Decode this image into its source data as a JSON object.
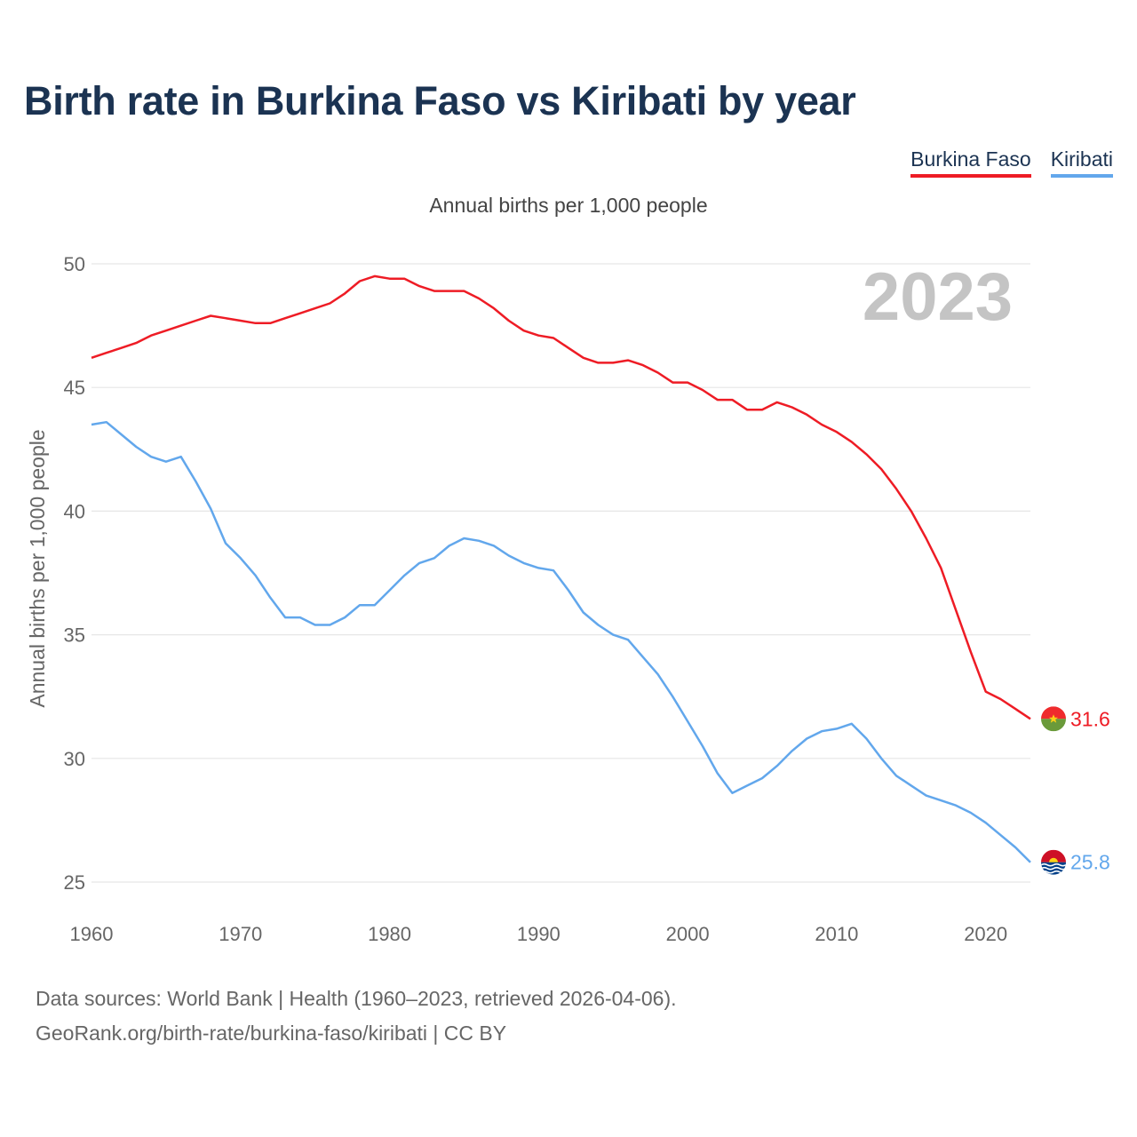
{
  "title": "Birth rate in Burkina Faso vs Kiribati by year",
  "subtitle": "Annual births per 1,000 people",
  "year_watermark": "2023",
  "legend": [
    {
      "label": "Burkina Faso",
      "color": "#ee1c25"
    },
    {
      "label": "Kiribati",
      "color": "#62a7ec"
    }
  ],
  "source": {
    "line1": "Data sources: World Bank | Health (1960–2023, retrieved 2026-04-06).",
    "line2": "GeoRank.org/birth-rate/burkina-faso/kiribati | CC BY"
  },
  "chart_data": {
    "type": "line",
    "title": "Birth rate in Burkina Faso vs Kiribati by year",
    "xlabel": "",
    "ylabel": "Annual births per 1,000 people",
    "xlim": [
      1960,
      2023
    ],
    "ylim": [
      25,
      50
    ],
    "x_ticks": [
      1960,
      1970,
      1980,
      1990,
      2000,
      2010,
      2020
    ],
    "y_ticks": [
      25,
      30,
      35,
      40,
      45,
      50
    ],
    "grid": true,
    "legend_position": "top-right",
    "x": [
      1960,
      1961,
      1962,
      1963,
      1964,
      1965,
      1966,
      1967,
      1968,
      1969,
      1970,
      1971,
      1972,
      1973,
      1974,
      1975,
      1976,
      1977,
      1978,
      1979,
      1980,
      1981,
      1982,
      1983,
      1984,
      1985,
      1986,
      1987,
      1988,
      1989,
      1990,
      1991,
      1992,
      1993,
      1994,
      1995,
      1996,
      1997,
      1998,
      1999,
      2000,
      2001,
      2002,
      2003,
      2004,
      2005,
      2006,
      2007,
      2008,
      2009,
      2010,
      2011,
      2012,
      2013,
      2014,
      2015,
      2016,
      2017,
      2018,
      2019,
      2020,
      2021,
      2022,
      2023
    ],
    "series": [
      {
        "name": "Burkina Faso",
        "color": "#ee1c25",
        "end_label": "31.6",
        "values": [
          46.2,
          46.4,
          46.6,
          46.8,
          47.1,
          47.3,
          47.5,
          47.7,
          47.9,
          47.8,
          47.7,
          47.6,
          47.6,
          47.8,
          48.0,
          48.2,
          48.4,
          48.8,
          49.3,
          49.5,
          49.4,
          49.4,
          49.1,
          48.9,
          48.9,
          48.9,
          48.6,
          48.2,
          47.7,
          47.3,
          47.1,
          47.0,
          46.6,
          46.2,
          46.0,
          46.0,
          46.1,
          45.9,
          45.6,
          45.2,
          45.2,
          44.9,
          44.5,
          44.5,
          44.1,
          44.1,
          44.4,
          44.2,
          43.9,
          43.5,
          43.2,
          42.8,
          42.3,
          41.7,
          40.9,
          40.0,
          38.9,
          37.7,
          36.0,
          34.3,
          32.7,
          32.4,
          32.0,
          31.6
        ]
      },
      {
        "name": "Kiribati",
        "color": "#62a7ec",
        "end_label": "25.8",
        "values": [
          43.5,
          43.6,
          43.1,
          42.6,
          42.2,
          42.0,
          42.2,
          41.2,
          40.1,
          38.7,
          38.1,
          37.4,
          36.5,
          35.7,
          35.7,
          35.4,
          35.4,
          35.7,
          36.2,
          36.2,
          36.8,
          37.4,
          37.9,
          38.1,
          38.6,
          38.9,
          38.8,
          38.6,
          38.2,
          37.9,
          37.7,
          37.6,
          36.8,
          35.9,
          35.4,
          35.0,
          34.8,
          34.1,
          33.4,
          32.5,
          31.5,
          30.5,
          29.4,
          28.6,
          28.9,
          29.2,
          29.7,
          30.3,
          30.8,
          31.1,
          31.2,
          31.4,
          30.8,
          30.0,
          29.3,
          28.9,
          28.5,
          28.3,
          28.1,
          27.8,
          27.4,
          26.9,
          26.4,
          25.8
        ]
      }
    ]
  }
}
